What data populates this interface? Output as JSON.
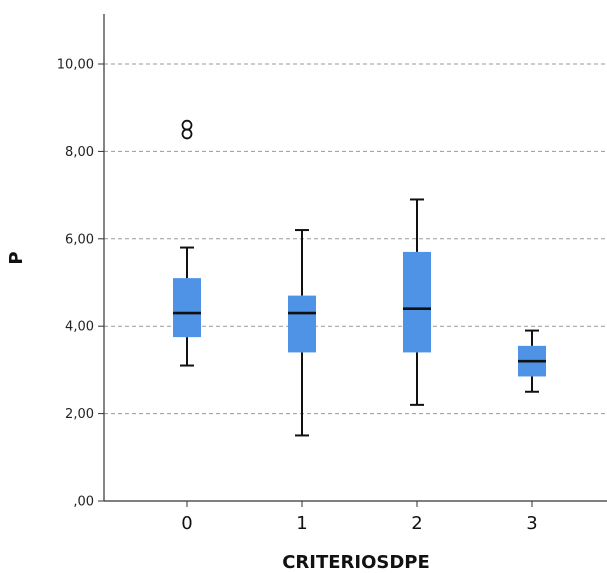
{
  "chart_data": {
    "type": "boxplot",
    "title": "",
    "xlabel": "CRITERIOSDPE",
    "ylabel": "P",
    "ylim": [
      0,
      11
    ],
    "yticks": [
      0,
      2,
      4,
      6,
      8,
      10
    ],
    "ytick_labels": [
      ",00",
      "2,00",
      "4,00",
      "6,00",
      "8,00",
      "10,00"
    ],
    "grid": "horizontal dashed",
    "categories": [
      "0",
      "1",
      "2",
      "3"
    ],
    "boxes": [
      {
        "category": "0",
        "min": 3.1,
        "q1": 3.75,
        "median": 4.3,
        "q3": 5.1,
        "max": 5.8,
        "outliers": [
          8.4,
          8.6
        ]
      },
      {
        "category": "1",
        "min": 1.5,
        "q1": 3.4,
        "median": 4.3,
        "q3": 4.7,
        "max": 6.2,
        "outliers": []
      },
      {
        "category": "2",
        "min": 2.2,
        "q1": 3.4,
        "median": 4.4,
        "q3": 5.7,
        "max": 6.9,
        "outliers": []
      },
      {
        "category": "3",
        "min": 2.5,
        "q1": 2.85,
        "median": 3.2,
        "q3": 3.55,
        "max": 3.9,
        "outliers": []
      }
    ],
    "colors": {
      "box": "#4f93e6",
      "lines": "#111111",
      "grid": "#9a9a9a"
    }
  }
}
